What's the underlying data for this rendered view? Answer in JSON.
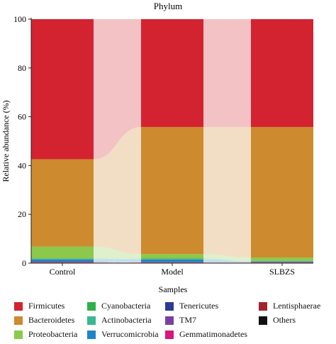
{
  "chart_data": {
    "type": "bar",
    "stacked": true,
    "title": "Phylum",
    "xlabel": "Samples",
    "ylabel": "Relative abundance (%)",
    "ylim": [
      0,
      100
    ],
    "yticks": [
      0,
      20,
      40,
      60,
      80,
      100
    ],
    "categories": [
      "Control",
      "Model",
      "SLBZS"
    ],
    "series": [
      {
        "name": "Others",
        "values": [
          0.2,
          0.1,
          0.1
        ],
        "color": "#111111"
      },
      {
        "name": "Gemmatimonadetes",
        "values": [
          0.1,
          0.1,
          0.1
        ],
        "color": "#d6197a"
      },
      {
        "name": "Lentisphaerae",
        "values": [
          0.1,
          0.1,
          0.1
        ],
        "color": "#a1242b"
      },
      {
        "name": "TM7",
        "values": [
          0.1,
          0.1,
          0.1
        ],
        "color": "#7b3fa1"
      },
      {
        "name": "Tenericutes",
        "values": [
          0.2,
          0.1,
          0.1
        ],
        "color": "#2b3a93"
      },
      {
        "name": "Verrucomicrobia",
        "values": [
          0.8,
          1.0,
          0.2
        ],
        "color": "#1f84c8"
      },
      {
        "name": "Actinobacteria",
        "values": [
          0.3,
          0.2,
          0.1
        ],
        "color": "#3ab893"
      },
      {
        "name": "Cyanobacteria",
        "values": [
          0.2,
          0.2,
          0.1
        ],
        "color": "#2fb04a"
      },
      {
        "name": "Proteobacteria",
        "values": [
          4.8,
          1.8,
          1.4
        ],
        "color": "#8cc84b"
      },
      {
        "name": "Bacteroidetes",
        "values": [
          35.8,
          52.1,
          53.5
        ],
        "color": "#cd8a2e"
      },
      {
        "name": "Firmicutes",
        "values": [
          57.4,
          44.2,
          44.2
        ],
        "color": "#d32330"
      }
    ],
    "legend": [
      {
        "label": "Firmicutes",
        "color": "#d32330"
      },
      {
        "label": "Cyanobacteria",
        "color": "#2fb04a"
      },
      {
        "label": "Tenericutes",
        "color": "#2b3a93"
      },
      {
        "label": "Lentisphaerae",
        "color": "#a1242b"
      },
      {
        "label": "Bacteroidetes",
        "color": "#cd8a2e"
      },
      {
        "label": "Actinobacteria",
        "color": "#3ab893"
      },
      {
        "label": "TM7",
        "color": "#7b3fa1"
      },
      {
        "label": "Others",
        "color": "#111111"
      },
      {
        "label": "Proteobacteria",
        "color": "#8cc84b"
      },
      {
        "label": "Verrucomicrobia",
        "color": "#1f84c8"
      },
      {
        "label": "Gemmatimonadetes",
        "color": "#d6197a"
      }
    ],
    "legend_position": "bottom",
    "grid": false
  }
}
